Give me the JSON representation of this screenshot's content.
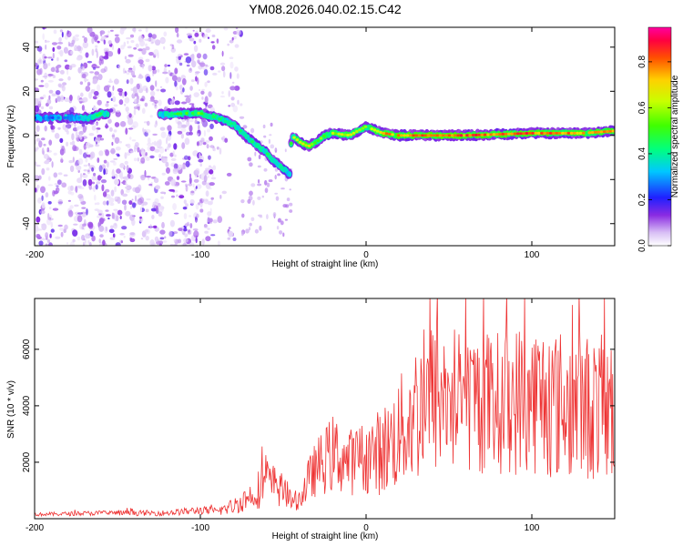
{
  "figure": {
    "title": "YM08.2026.040.02.15.C42"
  },
  "chart_data": [
    {
      "type": "heatmap",
      "name": "spectrogram",
      "xlabel": "Height of straight line (km)",
      "ylabel": "Frequency (Hz)",
      "xlim": [
        -200,
        150
      ],
      "ylim": [
        -50,
        49
      ],
      "xticks": [
        -200,
        -100,
        0,
        100
      ],
      "yticks": [
        -40,
        -20,
        0,
        20,
        40
      ],
      "colorbar": {
        "label": "Normalized spectral amplitude",
        "range": [
          0,
          0.95
        ],
        "ticks": [
          0.0,
          0.2,
          0.4,
          0.6,
          0.8
        ]
      },
      "ridge": {
        "description_points_x": [
          -200,
          -175,
          -165,
          -160,
          -130,
          -110,
          -100,
          -90,
          -80,
          -70,
          -60,
          -55,
          -50,
          -46,
          -45,
          -40,
          -35,
          -30,
          -25,
          -20,
          -10,
          0,
          10,
          20,
          60,
          100,
          130,
          150
        ],
        "description_points_y": [
          8,
          8,
          8,
          10,
          9,
          10,
          10,
          8,
          5,
          -2,
          -8,
          -12,
          -15,
          -18,
          0,
          -3,
          -5,
          -3,
          0,
          1,
          0,
          4,
          1,
          0,
          0,
          1,
          1,
          2
        ],
        "amplitude_points": [
          0.25,
          0.3,
          0.45,
          0.55,
          0.3,
          0.55,
          0.6,
          0.5,
          0.45,
          0.45,
          0.5,
          0.5,
          0.45,
          0.35,
          0.6,
          0.7,
          0.75,
          0.6,
          0.6,
          0.65,
          0.7,
          0.65,
          0.8,
          0.85,
          0.9,
          0.9,
          0.85,
          0.8
        ]
      },
      "noise_region_x": [
        -200,
        -75
      ]
    },
    {
      "type": "line",
      "name": "snr",
      "xlabel": "Height of straight line (km)",
      "ylabel": "SNR (10 * v/v)",
      "xlim": [
        -200,
        150
      ],
      "ylim": [
        0,
        7800
      ],
      "xticks": [
        -200,
        -100,
        0,
        100
      ],
      "yticks": [
        2000,
        4000,
        6000
      ],
      "color": "#ee3333",
      "envelope_x": [
        -200,
        -160,
        -120,
        -100,
        -90,
        -80,
        -70,
        -60,
        -50,
        -45,
        -40,
        -35,
        -30,
        -20,
        -10,
        0,
        10,
        20,
        30,
        40,
        60,
        80,
        100,
        120,
        150
      ],
      "envelope_mean": [
        150,
        200,
        200,
        300,
        250,
        450,
        800,
        1300,
        1000,
        600,
        700,
        1300,
        1800,
        2300,
        2000,
        2200,
        2400,
        3000,
        3800,
        4300,
        4200,
        4100,
        4300,
        4000,
        3900
      ],
      "envelope_amp": [
        60,
        90,
        100,
        150,
        150,
        300,
        500,
        900,
        600,
        300,
        400,
        800,
        1000,
        1400,
        1200,
        1300,
        1600,
        2000,
        2600,
        2800,
        2600,
        2600,
        2800,
        2700,
        2600
      ]
    }
  ]
}
